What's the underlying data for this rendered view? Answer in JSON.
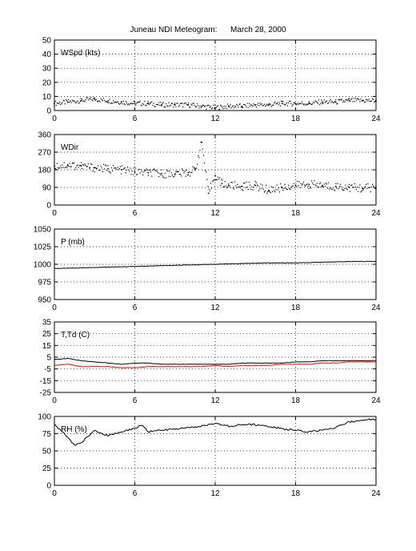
{
  "title": "Juneau NDI Meteogram:      March 28, 2000",
  "chart_data": [
    {
      "type": "scatter",
      "label": "WSpd (kts)",
      "xlim": [
        0,
        24
      ],
      "ylim": [
        0,
        50
      ],
      "xticks": [
        0,
        6,
        12,
        18,
        24
      ],
      "yticks": [
        0,
        10,
        20,
        30,
        40,
        50
      ],
      "grid": true,
      "series": [
        {
          "color": "#000000",
          "x": [
            0,
            1,
            2,
            3,
            4,
            5,
            6,
            7,
            8,
            9,
            10,
            11,
            12,
            13,
            14,
            15,
            16,
            17,
            18,
            19,
            20,
            21,
            22,
            23,
            24
          ],
          "y": [
            5,
            6,
            7,
            8,
            7,
            6,
            5,
            5,
            4,
            4,
            4,
            3,
            2,
            3,
            3,
            4,
            4,
            5,
            5,
            5,
            6,
            6,
            7,
            7,
            7
          ]
        }
      ]
    },
    {
      "type": "scatter",
      "label": "WDir",
      "xlim": [
        0,
        24
      ],
      "ylim": [
        0,
        360
      ],
      "xticks": [
        0,
        6,
        12,
        18,
        24
      ],
      "yticks": [
        0,
        90,
        180,
        270,
        360
      ],
      "grid": true,
      "series": [
        {
          "color": "#000000",
          "x": [
            0,
            1,
            2,
            3,
            4,
            5,
            6,
            7,
            8,
            9,
            10,
            10.5,
            11,
            11.5,
            12,
            12.5,
            13,
            14,
            15,
            16,
            17,
            18,
            19,
            20,
            21,
            22,
            23,
            24
          ],
          "y": [
            200,
            205,
            200,
            190,
            185,
            180,
            170,
            165,
            160,
            160,
            165,
            180,
            320,
            60,
            150,
            110,
            100,
            95,
            100,
            75,
            90,
            100,
            105,
            100,
            95,
            90,
            85,
            90
          ]
        }
      ]
    },
    {
      "type": "line",
      "label": "P (mb)",
      "xlim": [
        0,
        24
      ],
      "ylim": [
        950,
        1050
      ],
      "xticks": [
        0,
        6,
        12,
        18,
        24
      ],
      "yticks": [
        950,
        975,
        1000,
        1025,
        1050
      ],
      "grid": true,
      "series": [
        {
          "color": "#000000",
          "x": [
            0,
            2,
            4,
            6,
            8,
            10,
            12,
            14,
            16,
            18,
            20,
            22,
            24
          ],
          "y": [
            994,
            995,
            996,
            997,
            998,
            999,
            1000,
            1001,
            1002,
            1002,
            1003,
            1004,
            1004
          ]
        }
      ]
    },
    {
      "type": "line",
      "label": "T,Td (C)",
      "xlim": [
        0,
        24
      ],
      "ylim": [
        -25,
        35
      ],
      "xticks": [
        0,
        6,
        12,
        18,
        24
      ],
      "yticks": [
        -25,
        -15,
        -5,
        5,
        15,
        25,
        35
      ],
      "grid": true,
      "series": [
        {
          "color": "#000000",
          "x": [
            0,
            1,
            2,
            3,
            4,
            5,
            6,
            7,
            8,
            9,
            10,
            11,
            12,
            13,
            14,
            15,
            16,
            17,
            18,
            19,
            20,
            21,
            22,
            23,
            24
          ],
          "y": [
            3,
            4,
            2,
            1,
            0,
            -1,
            0,
            0,
            -1,
            -1,
            -1,
            -1,
            -1,
            -1,
            0,
            0,
            0,
            0,
            1,
            1,
            2,
            2,
            2,
            2,
            2
          ]
        },
        {
          "color": "#ff0000",
          "x": [
            0,
            1,
            2,
            3,
            4,
            5,
            6,
            7,
            8,
            9,
            10,
            11,
            12,
            13,
            14,
            15,
            16,
            17,
            18,
            19,
            20,
            21,
            22,
            23,
            24
          ],
          "y": [
            -2,
            -1,
            -3,
            -3,
            -3,
            -4,
            -4,
            -3,
            -3,
            -3,
            -3,
            -3,
            -2,
            -3,
            -2,
            -2,
            -2,
            -1,
            -1,
            -1,
            0,
            0,
            1,
            1,
            1
          ]
        }
      ]
    },
    {
      "type": "line",
      "label": "RH (%)",
      "xlim": [
        0,
        24
      ],
      "ylim": [
        0,
        100
      ],
      "xticks": [
        0,
        6,
        12,
        18,
        24
      ],
      "yticks": [
        0,
        25,
        50,
        75,
        100
      ],
      "grid": true,
      "series": [
        {
          "color": "#000000",
          "x": [
            0,
            0.5,
            1,
            1.5,
            2,
            3,
            4,
            5,
            6,
            6.5,
            7,
            8,
            9,
            10,
            11,
            12,
            13,
            14,
            15,
            16,
            17,
            18,
            19,
            20,
            21,
            22,
            23,
            24
          ],
          "y": [
            88,
            80,
            70,
            58,
            62,
            80,
            72,
            78,
            82,
            88,
            78,
            80,
            82,
            84,
            86,
            90,
            86,
            88,
            88,
            86,
            82,
            80,
            78,
            80,
            84,
            92,
            95,
            96
          ]
        }
      ]
    }
  ]
}
